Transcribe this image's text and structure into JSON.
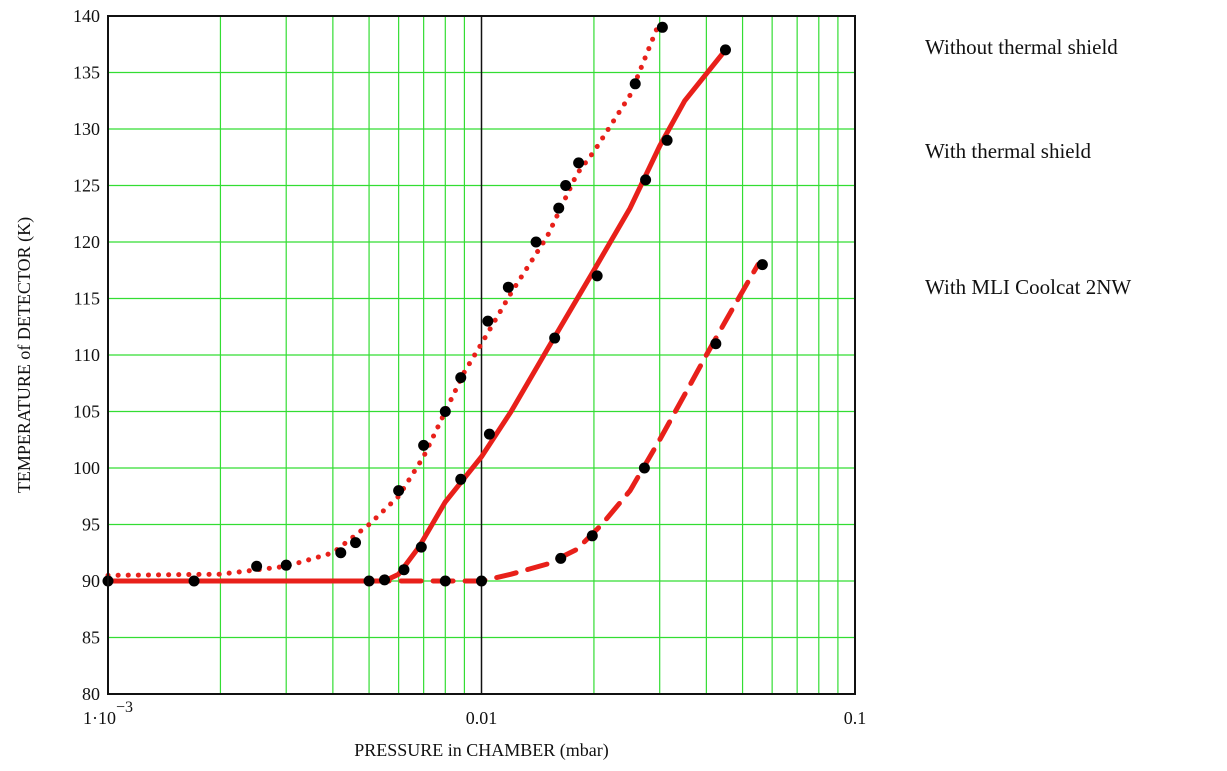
{
  "chart_data": {
    "type": "line",
    "xlabel": "PRESSURE in CHAMBER (mbar)",
    "ylabel": "TEMPERATURE of DETECTOR (K)",
    "x_scale": "log",
    "xlim": [
      0.001,
      0.1
    ],
    "ylim": [
      80,
      140
    ],
    "grid": true,
    "legend_position": "right",
    "x_ticks": [
      {
        "value": 0.001,
        "label": "1·10",
        "exponent": "−3"
      },
      {
        "value": 0.01,
        "label": "0.01"
      },
      {
        "value": 0.1,
        "label": "0.1"
      }
    ],
    "y_ticks": [
      80,
      85,
      90,
      95,
      100,
      105,
      110,
      115,
      120,
      125,
      130,
      135,
      140
    ],
    "series": [
      {
        "name": "Without thermal shield",
        "line_style": "dotted",
        "line_color": "#e8201a",
        "curve": [
          [
            0.001,
            90.5
          ],
          [
            0.002,
            90.6
          ],
          [
            0.003,
            91.3
          ],
          [
            0.004,
            92.5
          ],
          [
            0.005,
            95
          ],
          [
            0.006,
            97.5
          ],
          [
            0.007,
            101
          ],
          [
            0.008,
            105
          ],
          [
            0.009,
            108.5
          ],
          [
            0.01,
            111
          ],
          [
            0.012,
            115.5
          ],
          [
            0.015,
            120.5
          ],
          [
            0.018,
            126
          ],
          [
            0.02,
            128
          ],
          [
            0.025,
            133
          ],
          [
            0.03,
            139.5
          ]
        ],
        "points": [
          [
            0.0025,
            91.3
          ],
          [
            0.003,
            91.4
          ],
          [
            0.0042,
            92.5
          ],
          [
            0.0046,
            93.4
          ],
          [
            0.006,
            98
          ],
          [
            0.007,
            102
          ],
          [
            0.008,
            105
          ],
          [
            0.0088,
            108
          ],
          [
            0.0104,
            113
          ],
          [
            0.0118,
            116
          ],
          [
            0.014,
            120
          ],
          [
            0.0161,
            123
          ],
          [
            0.0168,
            125
          ],
          [
            0.0182,
            127
          ],
          [
            0.0258,
            134
          ],
          [
            0.0305,
            139
          ]
        ]
      },
      {
        "name": "With thermal shield",
        "line_style": "solid",
        "line_color": "#e8201a",
        "curve": [
          [
            0.001,
            90
          ],
          [
            0.0055,
            90
          ],
          [
            0.006,
            90.6
          ],
          [
            0.0068,
            93
          ],
          [
            0.008,
            97
          ],
          [
            0.01,
            101
          ],
          [
            0.012,
            105
          ],
          [
            0.015,
            110.5
          ],
          [
            0.02,
            117.5
          ],
          [
            0.025,
            123
          ],
          [
            0.03,
            128.5
          ],
          [
            0.035,
            132.5
          ],
          [
            0.045,
            137
          ]
        ],
        "points": [
          [
            0.001,
            90
          ],
          [
            0.0017,
            90
          ],
          [
            0.005,
            90
          ],
          [
            0.0055,
            90.1
          ],
          [
            0.0062,
            91
          ],
          [
            0.0069,
            93
          ],
          [
            0.0088,
            99
          ],
          [
            0.0105,
            103
          ],
          [
            0.0157,
            111.5
          ],
          [
            0.0204,
            117
          ],
          [
            0.0275,
            125.5
          ],
          [
            0.0314,
            129
          ],
          [
            0.045,
            137
          ]
        ]
      },
      {
        "name": "With MLI Coolcat 2NW",
        "line_style": "dashed",
        "line_color": "#e8201a",
        "curve": [
          [
            0.005,
            90
          ],
          [
            0.008,
            90
          ],
          [
            0.01,
            90
          ],
          [
            0.012,
            90.6
          ],
          [
            0.015,
            91.5
          ],
          [
            0.018,
            92.8
          ],
          [
            0.021,
            95
          ],
          [
            0.025,
            98
          ],
          [
            0.03,
            102.5
          ],
          [
            0.035,
            106.5
          ],
          [
            0.04,
            110
          ],
          [
            0.045,
            113
          ],
          [
            0.055,
            118
          ]
        ],
        "points": [
          [
            0.008,
            90
          ],
          [
            0.01,
            90
          ],
          [
            0.0163,
            92
          ],
          [
            0.0198,
            94
          ],
          [
            0.0273,
            100
          ],
          [
            0.0424,
            111
          ],
          [
            0.0565,
            118
          ]
        ]
      }
    ]
  }
}
